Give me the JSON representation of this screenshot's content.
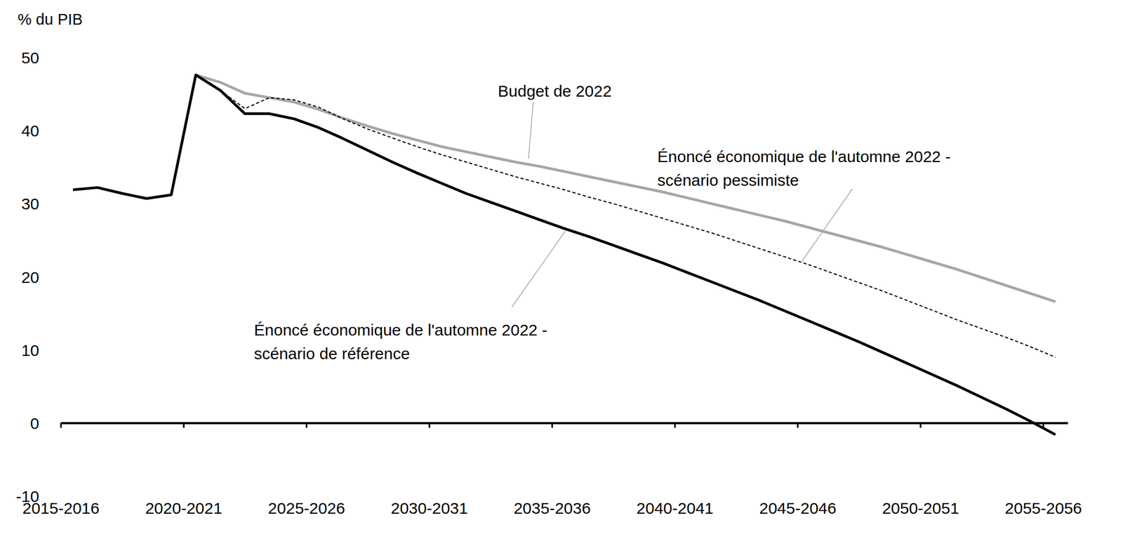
{
  "chart_data": {
    "type": "line",
    "y_label": "% du PIB",
    "categories": [
      "2015-2016",
      null,
      null,
      null,
      null,
      "2020-2021",
      null,
      null,
      null,
      null,
      "2025-2026",
      null,
      null,
      null,
      null,
      "2030-2031",
      null,
      null,
      null,
      null,
      "2035-2036",
      null,
      null,
      null,
      null,
      "2040-2041",
      null,
      null,
      null,
      null,
      "2045-2046",
      null,
      null,
      null,
      null,
      "2050-2051",
      null,
      null,
      null,
      null,
      "2055-2056"
    ],
    "series": [
      {
        "name": "Budget de 2022",
        "color": "#a6a6a6",
        "line_style": "solid",
        "values": [
          null,
          null,
          null,
          null,
          null,
          47.6,
          46.6,
          45.1,
          44.5,
          43.9,
          42.9,
          41.7,
          40.6,
          39.6,
          38.7,
          37.8,
          37.1,
          36.4,
          35.7,
          35.1,
          34.4,
          33.7,
          33.0,
          32.3,
          31.6,
          30.8,
          30.0,
          29.2,
          28.4,
          27.6,
          26.7,
          25.8,
          24.9,
          24.0,
          23.0,
          22.0,
          21.0,
          19.9,
          18.8,
          17.7,
          16.6
        ]
      },
      {
        "name": "Énoncé économique de l'automne 2022 - scénario pessimiste",
        "color": "#000000",
        "line_style": "dashed",
        "values": [
          null,
          null,
          null,
          null,
          null,
          null,
          45.5,
          43.0,
          44.5,
          44.2,
          43.2,
          41.6,
          40.2,
          39.0,
          37.8,
          36.7,
          35.7,
          34.7,
          33.7,
          32.8,
          31.9,
          30.9,
          30.0,
          29.0,
          28.0,
          27.0,
          26.0,
          24.9,
          23.8,
          22.7,
          21.6,
          20.4,
          19.2,
          18.0,
          16.7,
          15.4,
          14.1,
          12.9,
          11.7,
          10.4,
          9.0
        ]
      },
      {
        "name": "Énoncé économique de l'automne 2022 - scénario de référence",
        "color": "#000000",
        "line_style": "solid",
        "values": [
          31.9,
          32.2,
          31.4,
          30.7,
          31.2,
          47.6,
          45.5,
          42.3,
          42.3,
          41.6,
          40.4,
          38.9,
          37.3,
          35.7,
          34.2,
          32.8,
          31.4,
          30.2,
          29.0,
          27.8,
          26.6,
          25.5,
          24.3,
          23.1,
          21.9,
          20.6,
          19.3,
          18.0,
          16.7,
          15.3,
          13.9,
          12.5,
          11.1,
          9.6,
          8.1,
          6.6,
          5.1,
          3.5,
          1.9,
          0.2,
          -1.6
        ]
      }
    ],
    "ylim": [
      -10,
      50
    ],
    "yticks": [
      -10,
      0,
      10,
      20,
      30,
      40,
      50
    ],
    "grid": false
  }
}
